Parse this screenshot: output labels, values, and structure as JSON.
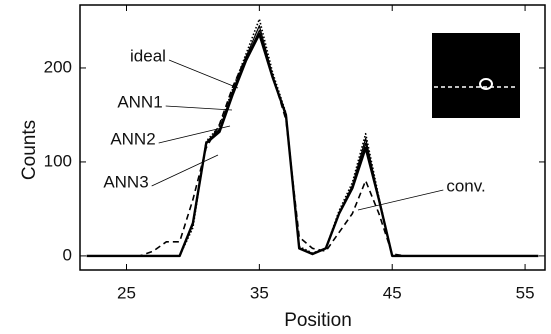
{
  "chart_data": {
    "type": "line",
    "x_label": "Position",
    "y_label": "Counts",
    "x": [
      22,
      23,
      24,
      25,
      26,
      27,
      28,
      29,
      30,
      31,
      32,
      33,
      34,
      35,
      36,
      37,
      38,
      39,
      40,
      41,
      42,
      43,
      44,
      45,
      46,
      47,
      48,
      49,
      50,
      51,
      52,
      53,
      54,
      55,
      56
    ],
    "series": [
      {
        "name": "ideal",
        "color": "#000000",
        "style": "dotted",
        "values": [
          0,
          0,
          0,
          0,
          0,
          0,
          0,
          0,
          30,
          122,
          138,
          178,
          215,
          252,
          195,
          152,
          10,
          3,
          8,
          48,
          78,
          130,
          62,
          0,
          0,
          0,
          0,
          0,
          0,
          0,
          0,
          0,
          0,
          0,
          0
        ]
      },
      {
        "name": "ANN1",
        "color": "#000000",
        "style": "solid",
        "values": [
          0,
          0,
          0,
          0,
          0,
          0,
          0,
          0,
          33,
          121,
          135,
          176,
          212,
          245,
          192,
          151,
          9,
          2,
          8,
          46,
          75,
          125,
          61,
          0,
          0,
          0,
          0,
          0,
          0,
          0,
          0,
          0,
          0,
          0,
          0
        ]
      },
      {
        "name": "ANN2",
        "color": "#000000",
        "style": "solid",
        "values": [
          0,
          0,
          0,
          0,
          0,
          0,
          0,
          0,
          34,
          120,
          134,
          174,
          210,
          240,
          191,
          150,
          8,
          2,
          8,
          45,
          73,
          120,
          60,
          0,
          0,
          0,
          0,
          0,
          0,
          0,
          0,
          0,
          0,
          0,
          0
        ]
      },
      {
        "name": "ANN3",
        "color": "#000000",
        "style": "thick",
        "values": [
          0,
          0,
          0,
          0,
          0,
          0,
          0,
          0,
          35,
          120,
          132,
          172,
          208,
          236,
          190,
          150,
          8,
          2,
          8,
          45,
          72,
          115,
          60,
          0,
          0,
          0,
          0,
          0,
          0,
          0,
          0,
          0,
          0,
          0,
          0
        ]
      },
      {
        "name": "conv.",
        "color": "#000000",
        "style": "dashed",
        "values": [
          0,
          0,
          0,
          0,
          0,
          5,
          15,
          15,
          60,
          115,
          140,
          180,
          212,
          235,
          192,
          145,
          20,
          8,
          5,
          25,
          45,
          80,
          45,
          2,
          0,
          0,
          0,
          0,
          0,
          0,
          0,
          0,
          0,
          0,
          0
        ]
      }
    ],
    "xlim": [
      21.5,
      56.5
    ],
    "xticks": [
      25,
      35,
      45,
      55
    ],
    "ylim": [
      -15,
      267
    ],
    "yticks": [
      0,
      100,
      200
    ]
  }
}
